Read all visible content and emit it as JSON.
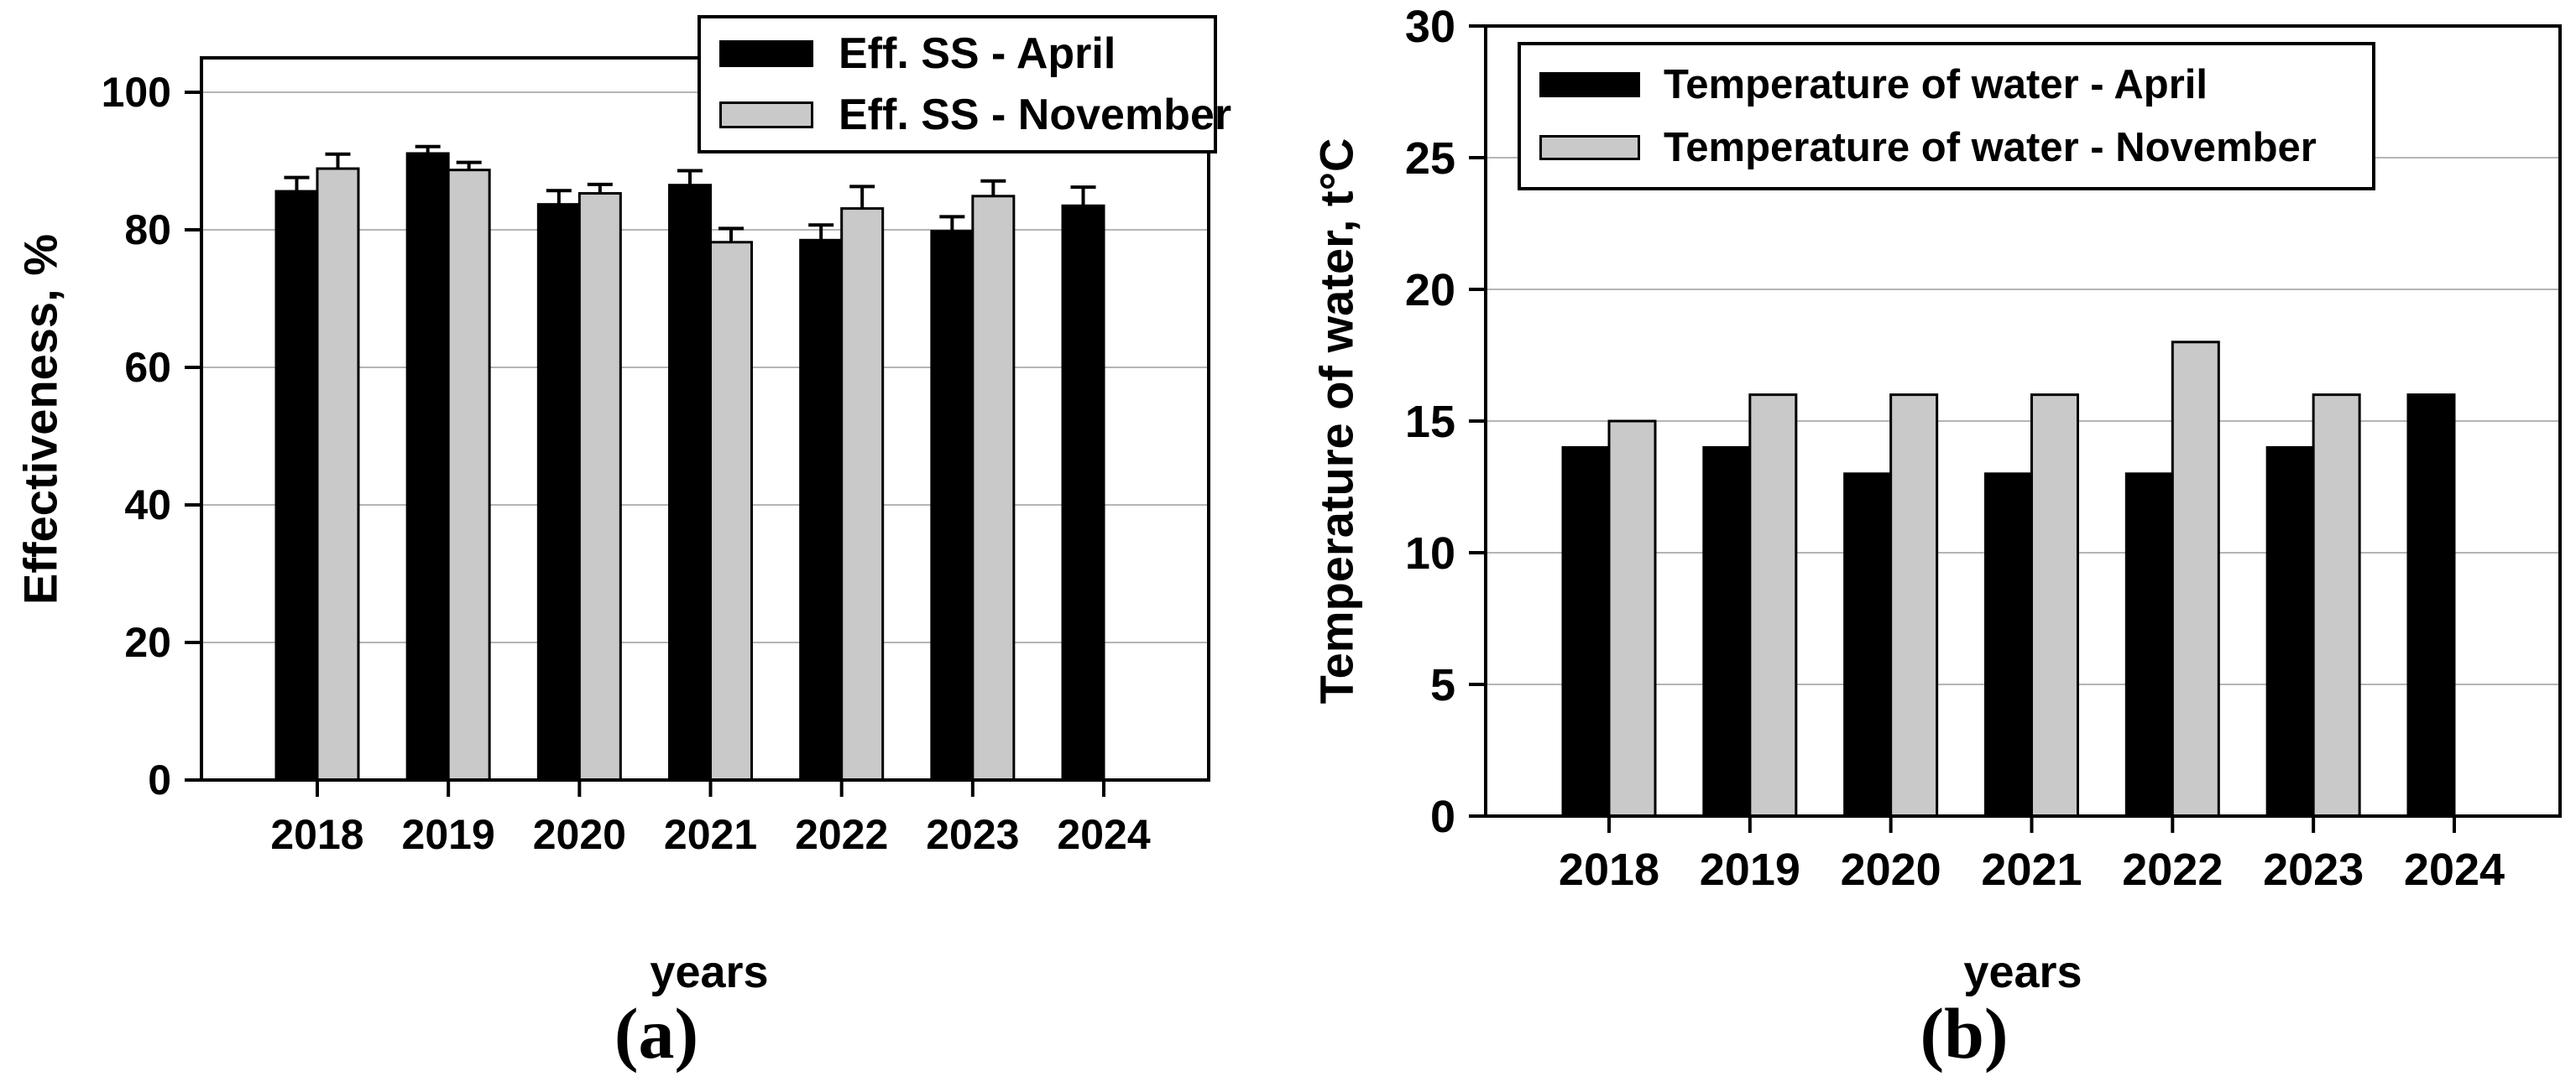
{
  "figure": {
    "background": "#ffffff",
    "accent_black": "#000000",
    "bar_gray": "#c9c9c9",
    "gridline_color": "#b5b5b5"
  },
  "chart_data": [
    {
      "type": "bar",
      "panel": "a",
      "caption": "(a)",
      "title": "",
      "xlabel": "years",
      "ylabel": "Effectiveness, %",
      "categories": [
        "2018",
        "2019",
        "2020",
        "2021",
        "2022",
        "2023",
        "2024"
      ],
      "series": [
        {
          "name": "Eff. SS - April",
          "color": "#000000",
          "values": [
            85.6,
            91.1,
            83.7,
            86.5,
            78.5,
            79.8,
            83.5
          ],
          "errors_plus": [
            2.0,
            1.0,
            2.0,
            2.1,
            2.2,
            2.1,
            2.7
          ]
        },
        {
          "name": "Eff. SS - November",
          "color": "#c9c9c9",
          "values": [
            88.9,
            88.7,
            85.3,
            78.2,
            83.1,
            84.9,
            null
          ],
          "errors_plus": [
            2.1,
            1.1,
            1.3,
            2.0,
            3.2,
            2.2,
            null
          ]
        }
      ],
      "ylim": [
        0,
        105
      ],
      "yticks": [
        0,
        20,
        40,
        60,
        80,
        100
      ],
      "grid": true,
      "error_bars": true,
      "legend_position": "top-right-overlapping-frame"
    },
    {
      "type": "bar",
      "panel": "b",
      "caption": "(b)",
      "title": "",
      "xlabel": "years",
      "ylabel": "Temperature of water, t°C",
      "categories": [
        "2018",
        "2019",
        "2020",
        "2021",
        "2022",
        "2023",
        "2024"
      ],
      "series": [
        {
          "name": "Temperature of water - April",
          "color": "#000000",
          "values": [
            14,
            14,
            13,
            13,
            13,
            14,
            16
          ]
        },
        {
          "name": "Temperature of water - November",
          "color": "#c9c9c9",
          "values": [
            15,
            16,
            16,
            16,
            18,
            16,
            null
          ]
        }
      ],
      "ylim": [
        0,
        30
      ],
      "yticks": [
        0,
        5,
        10,
        15,
        20,
        25,
        30
      ],
      "grid": true,
      "error_bars": false,
      "legend_position": "top-left-inside"
    }
  ]
}
